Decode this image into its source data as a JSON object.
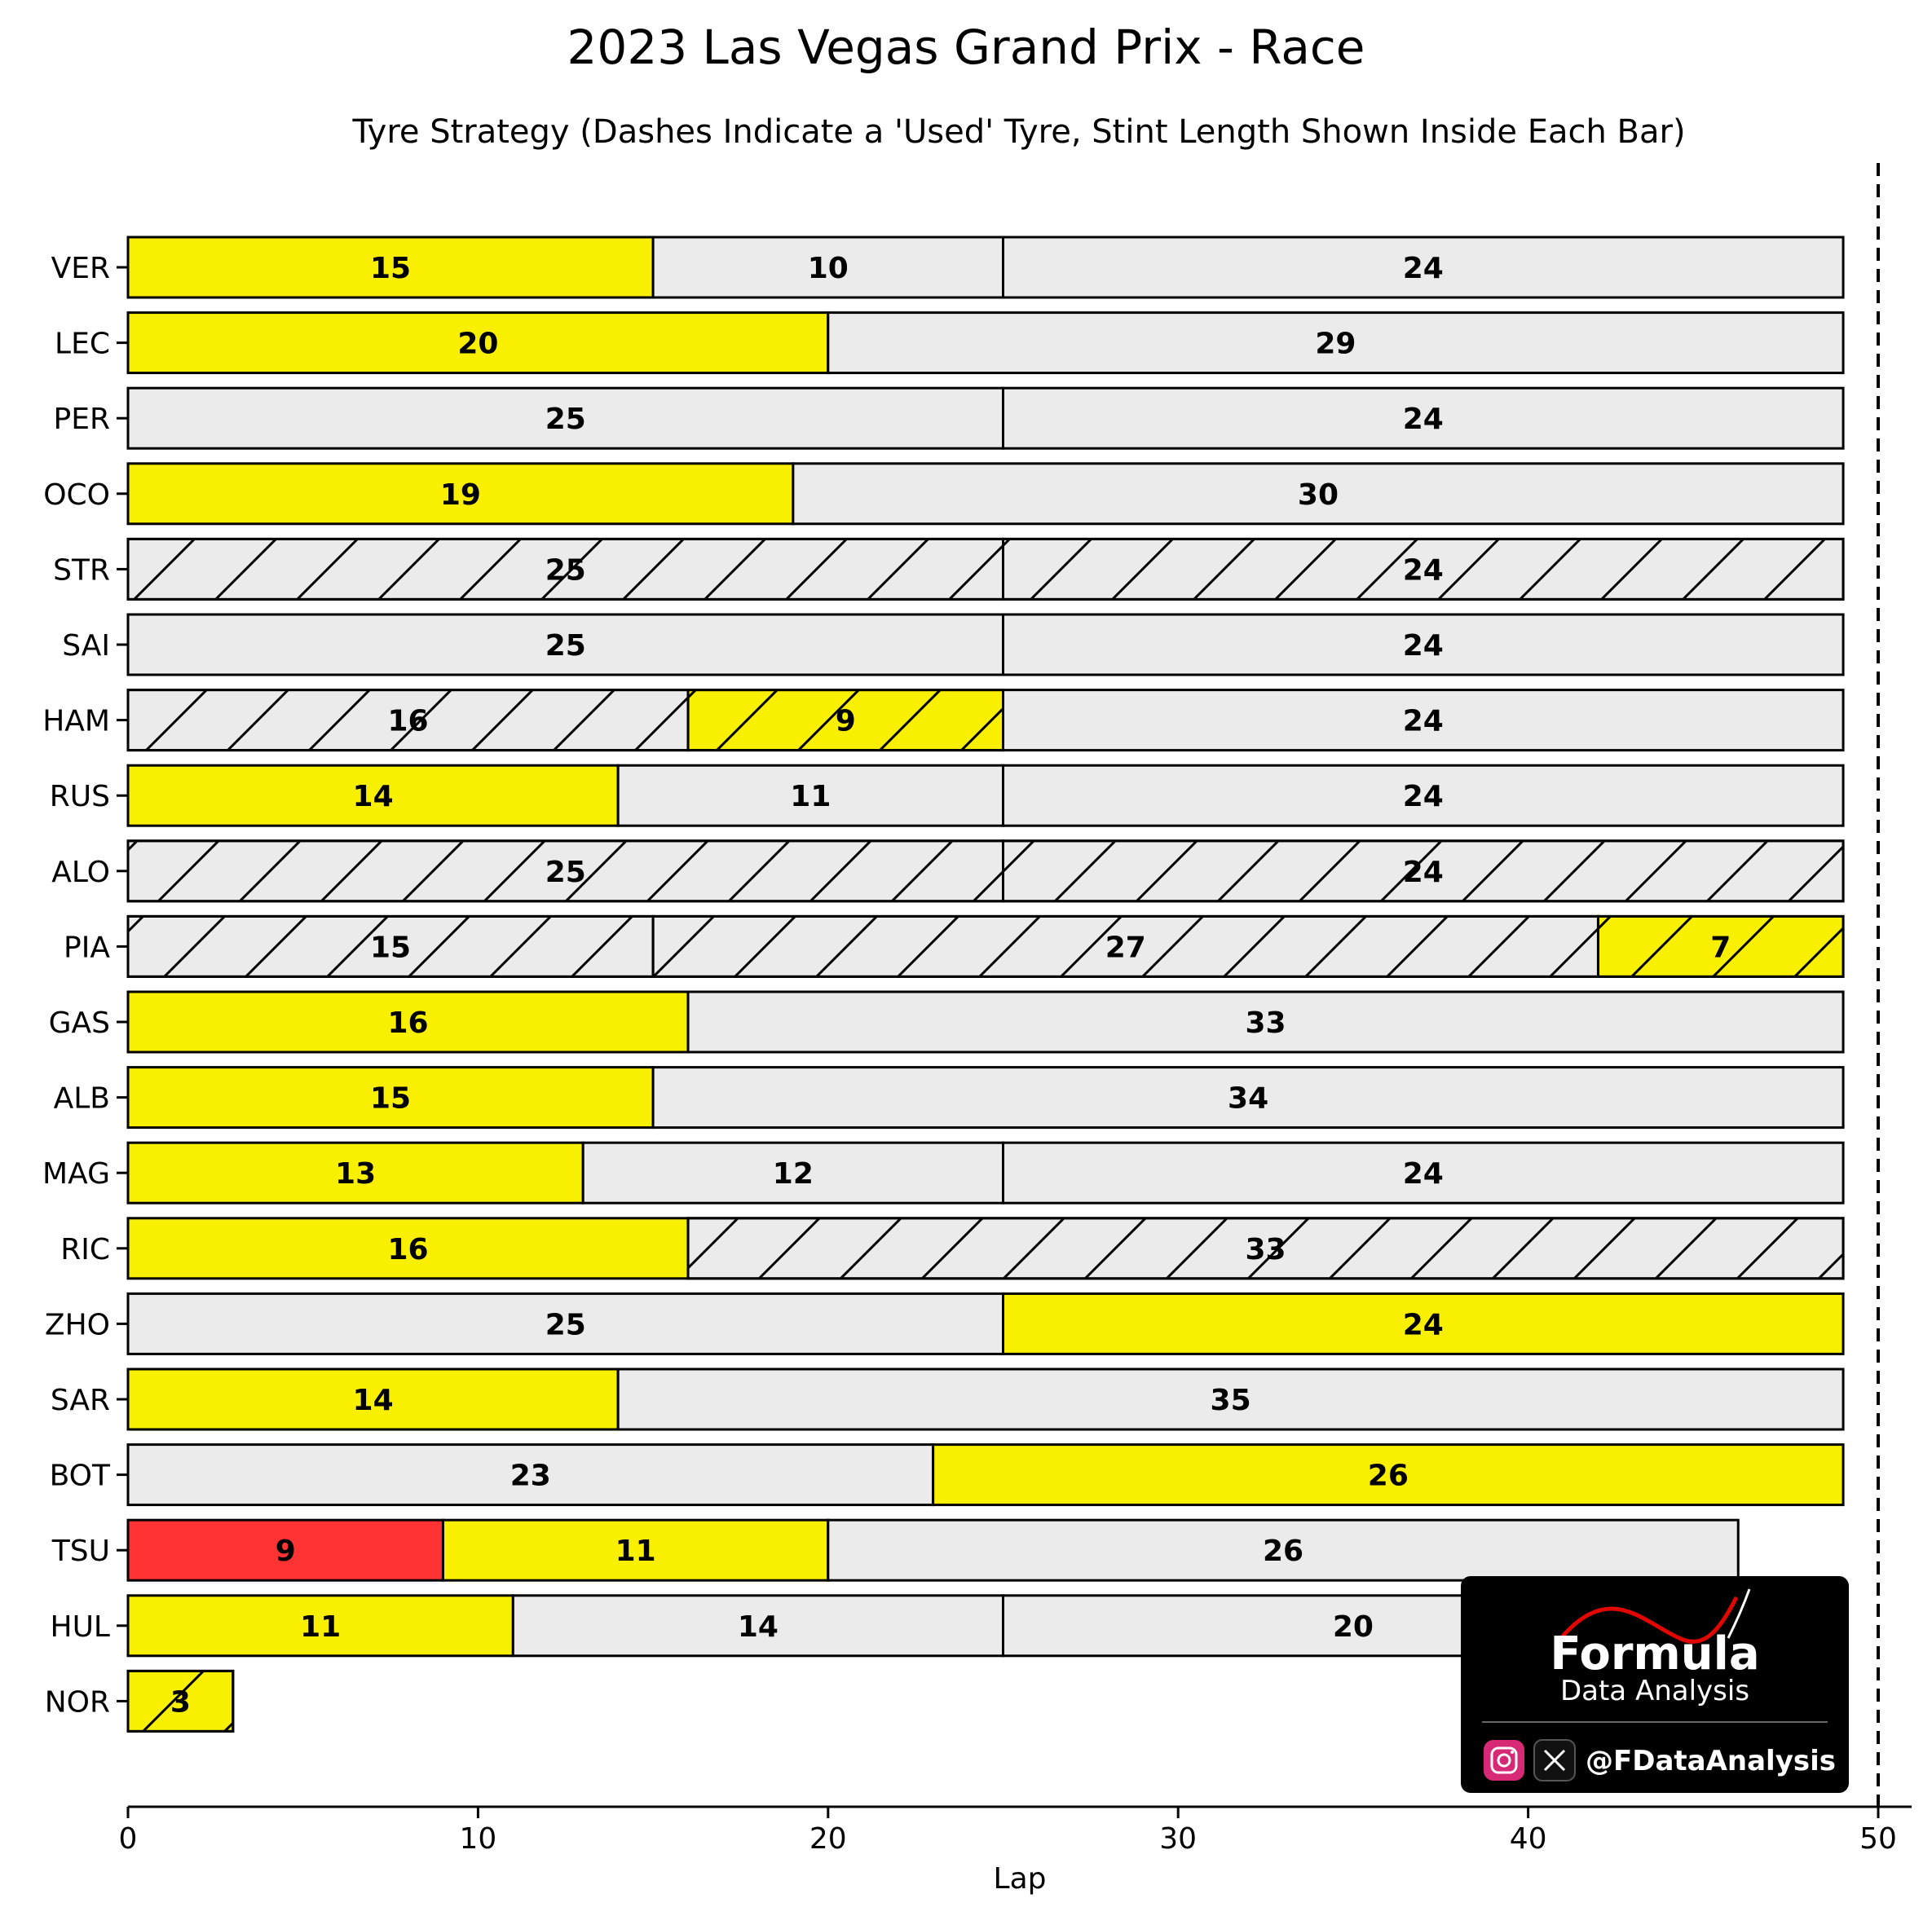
{
  "chart_data": {
    "type": "bar",
    "orientation": "horizontal-stacked",
    "title": "2023 Las Vegas Grand Prix - Race",
    "subtitle": "Tyre Strategy (Dashes Indicate a 'Used' Tyre, Stint Length Shown Inside Each Bar)",
    "xlabel": "Lap",
    "xlim": [
      0,
      50
    ],
    "xticks": [
      0,
      10,
      20,
      30,
      40,
      50
    ],
    "race_laps_line": 50,
    "grid": false,
    "compound_colors": {
      "SOFT": "#f9ef00",
      "HARD": "#ebebeb",
      "MEDIUM_RED": "#ff3333"
    },
    "drivers": [
      {
        "driver": "VER",
        "stints": [
          {
            "laps": 15,
            "compound": "SOFT",
            "used": false
          },
          {
            "laps": 10,
            "compound": "HARD",
            "used": false
          },
          {
            "laps": 24,
            "compound": "HARD",
            "used": false
          }
        ]
      },
      {
        "driver": "LEC",
        "stints": [
          {
            "laps": 20,
            "compound": "SOFT",
            "used": false
          },
          {
            "laps": 29,
            "compound": "HARD",
            "used": false
          }
        ]
      },
      {
        "driver": "PER",
        "stints": [
          {
            "laps": 25,
            "compound": "HARD",
            "used": false
          },
          {
            "laps": 24,
            "compound": "HARD",
            "used": false
          }
        ]
      },
      {
        "driver": "OCO",
        "stints": [
          {
            "laps": 19,
            "compound": "SOFT",
            "used": false
          },
          {
            "laps": 30,
            "compound": "HARD",
            "used": false
          }
        ]
      },
      {
        "driver": "STR",
        "stints": [
          {
            "laps": 25,
            "compound": "HARD",
            "used": true
          },
          {
            "laps": 24,
            "compound": "HARD",
            "used": true
          }
        ]
      },
      {
        "driver": "SAI",
        "stints": [
          {
            "laps": 25,
            "compound": "HARD",
            "used": false
          },
          {
            "laps": 24,
            "compound": "HARD",
            "used": false
          }
        ]
      },
      {
        "driver": "HAM",
        "stints": [
          {
            "laps": 16,
            "compound": "HARD",
            "used": true
          },
          {
            "laps": 9,
            "compound": "SOFT",
            "used": true
          },
          {
            "laps": 24,
            "compound": "HARD",
            "used": false
          }
        ]
      },
      {
        "driver": "RUS",
        "stints": [
          {
            "laps": 14,
            "compound": "SOFT",
            "used": false
          },
          {
            "laps": 11,
            "compound": "HARD",
            "used": false
          },
          {
            "laps": 24,
            "compound": "HARD",
            "used": false
          }
        ]
      },
      {
        "driver": "ALO",
        "stints": [
          {
            "laps": 25,
            "compound": "HARD",
            "used": true
          },
          {
            "laps": 24,
            "compound": "HARD",
            "used": true
          }
        ]
      },
      {
        "driver": "PIA",
        "stints": [
          {
            "laps": 15,
            "compound": "HARD",
            "used": true
          },
          {
            "laps": 27,
            "compound": "HARD",
            "used": true
          },
          {
            "laps": 7,
            "compound": "SOFT",
            "used": true
          }
        ]
      },
      {
        "driver": "GAS",
        "stints": [
          {
            "laps": 16,
            "compound": "SOFT",
            "used": false
          },
          {
            "laps": 33,
            "compound": "HARD",
            "used": false
          }
        ]
      },
      {
        "driver": "ALB",
        "stints": [
          {
            "laps": 15,
            "compound": "SOFT",
            "used": false
          },
          {
            "laps": 34,
            "compound": "HARD",
            "used": false
          }
        ]
      },
      {
        "driver": "MAG",
        "stints": [
          {
            "laps": 13,
            "compound": "SOFT",
            "used": false
          },
          {
            "laps": 12,
            "compound": "HARD",
            "used": false
          },
          {
            "laps": 24,
            "compound": "HARD",
            "used": false
          }
        ]
      },
      {
        "driver": "RIC",
        "stints": [
          {
            "laps": 16,
            "compound": "SOFT",
            "used": false
          },
          {
            "laps": 33,
            "compound": "HARD",
            "used": true
          }
        ]
      },
      {
        "driver": "ZHO",
        "stints": [
          {
            "laps": 25,
            "compound": "HARD",
            "used": false
          },
          {
            "laps": 24,
            "compound": "SOFT",
            "used": false
          }
        ]
      },
      {
        "driver": "SAR",
        "stints": [
          {
            "laps": 14,
            "compound": "SOFT",
            "used": false
          },
          {
            "laps": 35,
            "compound": "HARD",
            "used": false
          }
        ]
      },
      {
        "driver": "BOT",
        "stints": [
          {
            "laps": 23,
            "compound": "HARD",
            "used": false
          },
          {
            "laps": 26,
            "compound": "SOFT",
            "used": false
          }
        ]
      },
      {
        "driver": "TSU",
        "stints": [
          {
            "laps": 9,
            "compound": "MEDIUM_RED",
            "used": false
          },
          {
            "laps": 11,
            "compound": "SOFT",
            "used": false
          },
          {
            "laps": 26,
            "compound": "HARD",
            "used": false
          }
        ]
      },
      {
        "driver": "HUL",
        "stints": [
          {
            "laps": 11,
            "compound": "SOFT",
            "used": false
          },
          {
            "laps": 14,
            "compound": "HARD",
            "used": false
          },
          {
            "laps": 20,
            "compound": "HARD",
            "used": false
          }
        ]
      },
      {
        "driver": "NOR",
        "stints": [
          {
            "laps": 3,
            "compound": "SOFT",
            "used": true
          }
        ]
      }
    ]
  },
  "logo": {
    "brand_line1": "Formula",
    "brand_line2": "Data Analysis",
    "handle": "@FDataAnalysis",
    "icons": [
      "instagram-icon",
      "x-icon"
    ],
    "background": "#000000"
  }
}
